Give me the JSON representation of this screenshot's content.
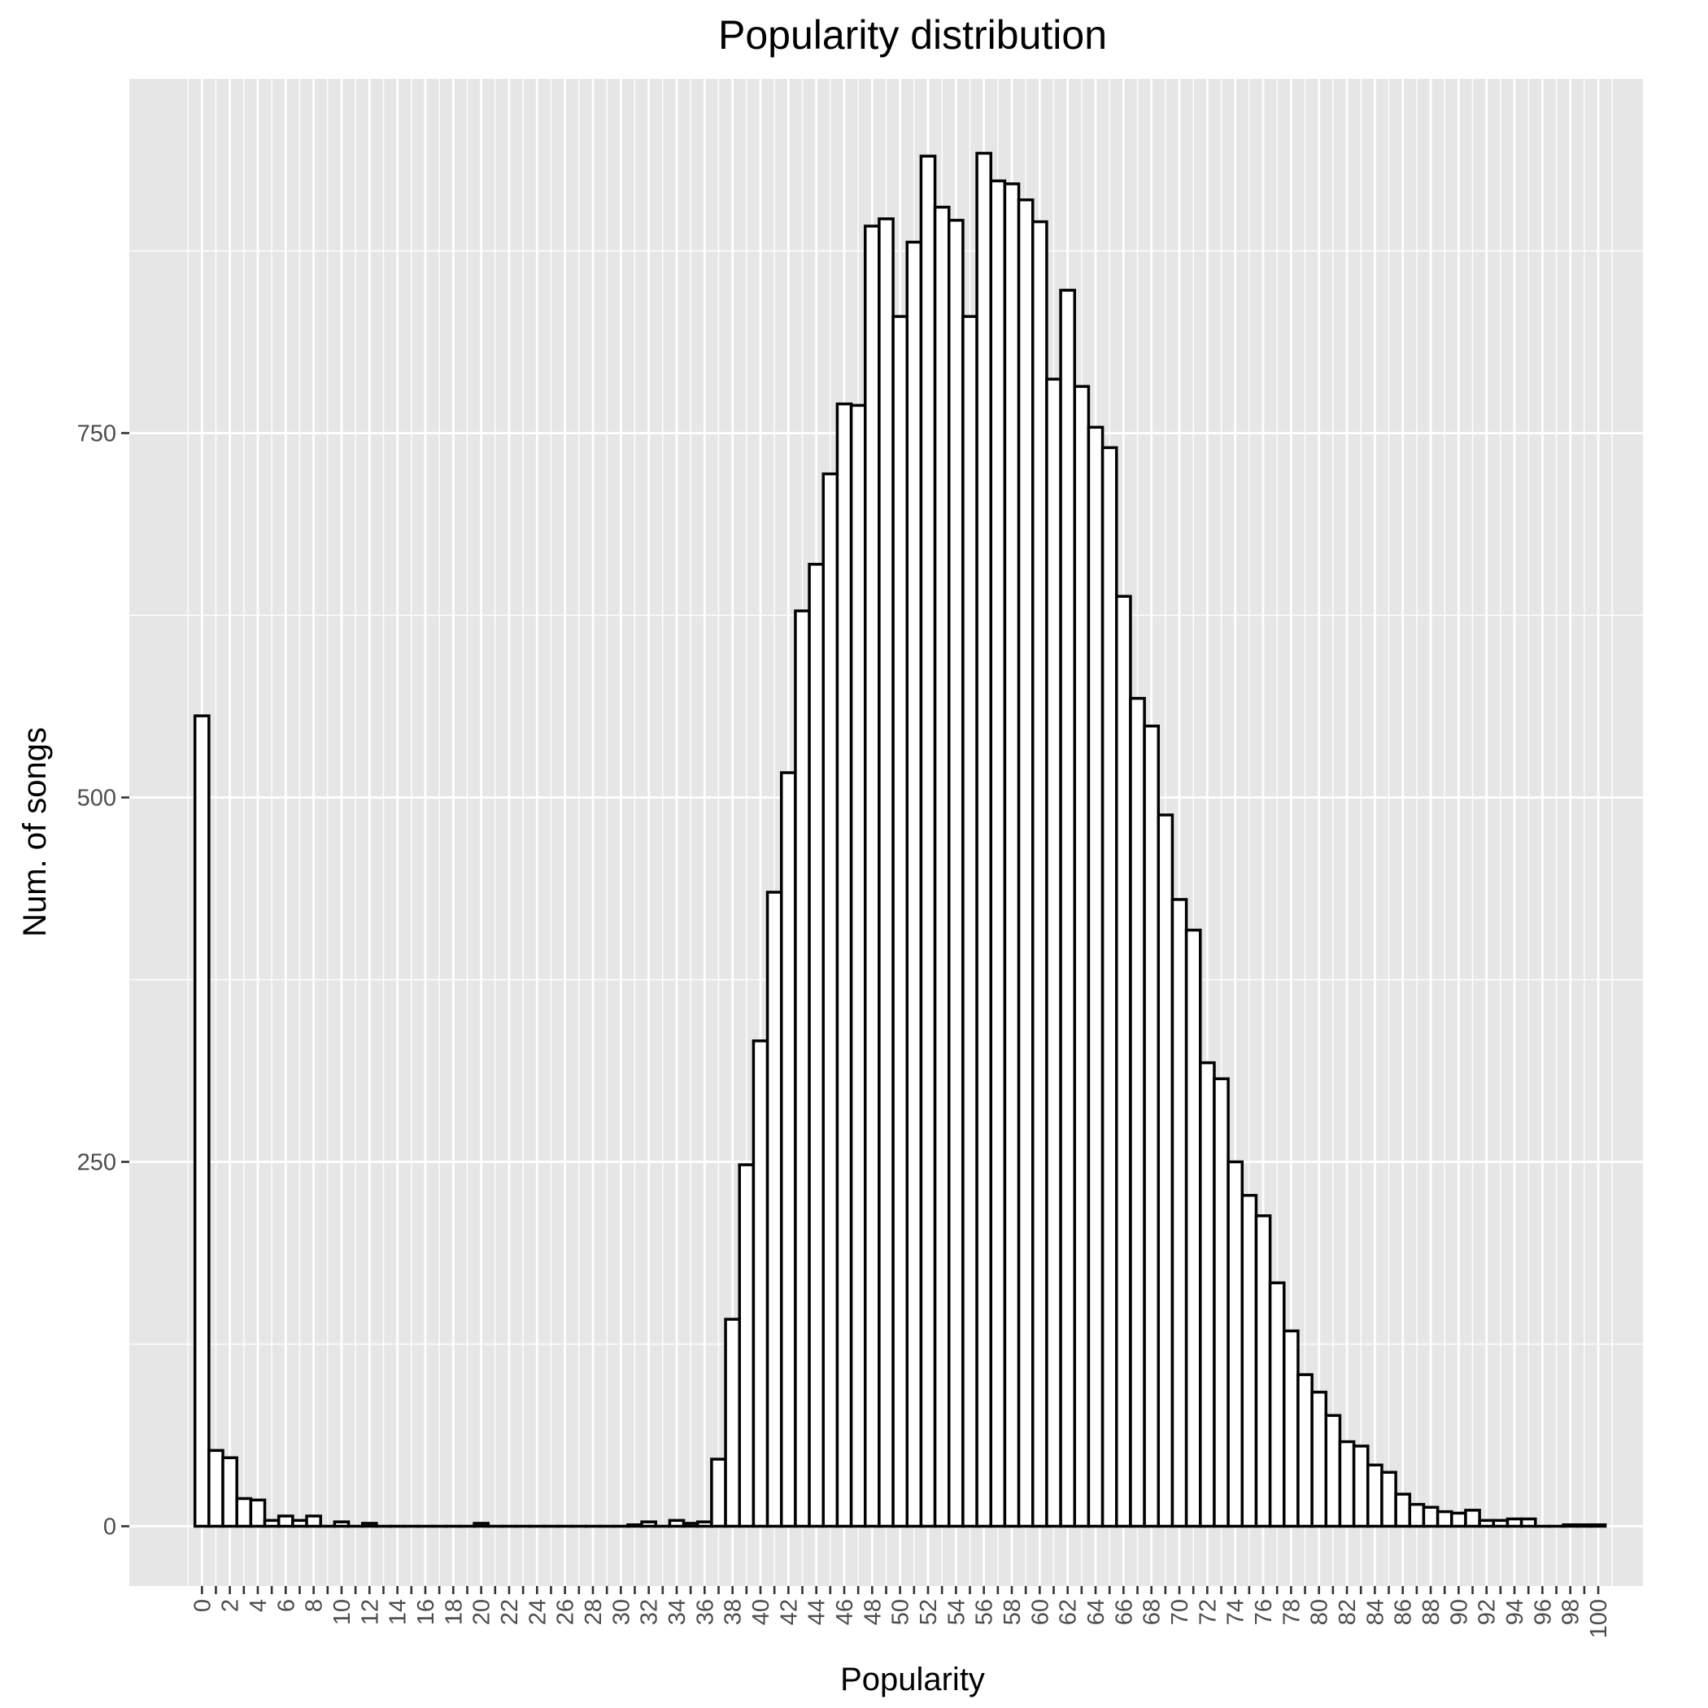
{
  "chart_data": {
    "type": "bar",
    "title": "Popularity distribution",
    "xlabel": "Popularity",
    "ylabel": "Num. of songs",
    "x": [
      0,
      1,
      2,
      3,
      4,
      5,
      6,
      7,
      8,
      9,
      10,
      11,
      12,
      13,
      14,
      15,
      16,
      17,
      18,
      19,
      20,
      21,
      22,
      23,
      24,
      25,
      26,
      27,
      28,
      29,
      30,
      31,
      32,
      33,
      34,
      35,
      36,
      37,
      38,
      39,
      40,
      41,
      42,
      43,
      44,
      45,
      46,
      47,
      48,
      49,
      50,
      51,
      52,
      53,
      54,
      55,
      56,
      57,
      58,
      59,
      60,
      61,
      62,
      63,
      64,
      65,
      66,
      67,
      68,
      69,
      70,
      71,
      72,
      73,
      74,
      75,
      76,
      77,
      78,
      79,
      80,
      81,
      82,
      83,
      84,
      85,
      86,
      87,
      88,
      89,
      90,
      91,
      92,
      93,
      94,
      95,
      96,
      97,
      98,
      99,
      100
    ],
    "values": [
      556,
      52,
      47,
      19,
      18,
      4,
      7,
      4,
      7,
      0,
      3,
      0,
      2,
      0,
      0,
      0,
      0,
      0,
      0,
      0,
      2,
      0,
      0,
      0,
      0,
      0,
      0,
      0,
      0,
      0,
      0,
      1,
      3,
      0,
      4,
      2,
      3,
      46,
      142,
      248,
      333,
      435,
      517,
      628,
      660,
      722,
      770,
      769,
      892,
      897,
      830,
      881,
      940,
      905,
      896,
      830,
      942,
      923,
      921,
      910,
      895,
      787,
      848,
      782,
      754,
      740,
      638,
      568,
      549,
      488,
      430,
      409,
      318,
      307,
      250,
      227,
      213,
      167,
      134,
      104,
      92,
      76,
      58,
      55,
      42,
      37,
      22,
      15,
      13,
      10,
      9,
      11,
      4,
      4,
      5,
      5,
      0,
      0,
      1,
      1,
      1
    ],
    "x_tick_labels": [
      "0",
      "2",
      "4",
      "6",
      "8",
      "10",
      "12",
      "14",
      "16",
      "18",
      "20",
      "22",
      "24",
      "26",
      "28",
      "30",
      "32",
      "34",
      "36",
      "38",
      "40",
      "42",
      "44",
      "46",
      "48",
      "50",
      "52",
      "54",
      "56",
      "58",
      "60",
      "62",
      "64",
      "66",
      "68",
      "70",
      "72",
      "74",
      "76",
      "78",
      "80",
      "82",
      "84",
      "86",
      "88",
      "90",
      "92",
      "94",
      "96",
      "98",
      "100"
    ],
    "y_ticks": [
      0,
      250,
      500,
      750
    ],
    "y_tick_labels": [
      "0",
      "250",
      "500",
      "750"
    ],
    "ylim": [
      -41,
      993
    ],
    "xlim": [
      -5.2,
      103.2
    ],
    "grid": true,
    "legend": "none",
    "colors": {
      "panel": "#e6e6e6",
      "bar_fill": "#ffffff",
      "bar_outline": "#000000",
      "grid": "#ffffff",
      "tick_text": "#4d4d4d"
    }
  }
}
